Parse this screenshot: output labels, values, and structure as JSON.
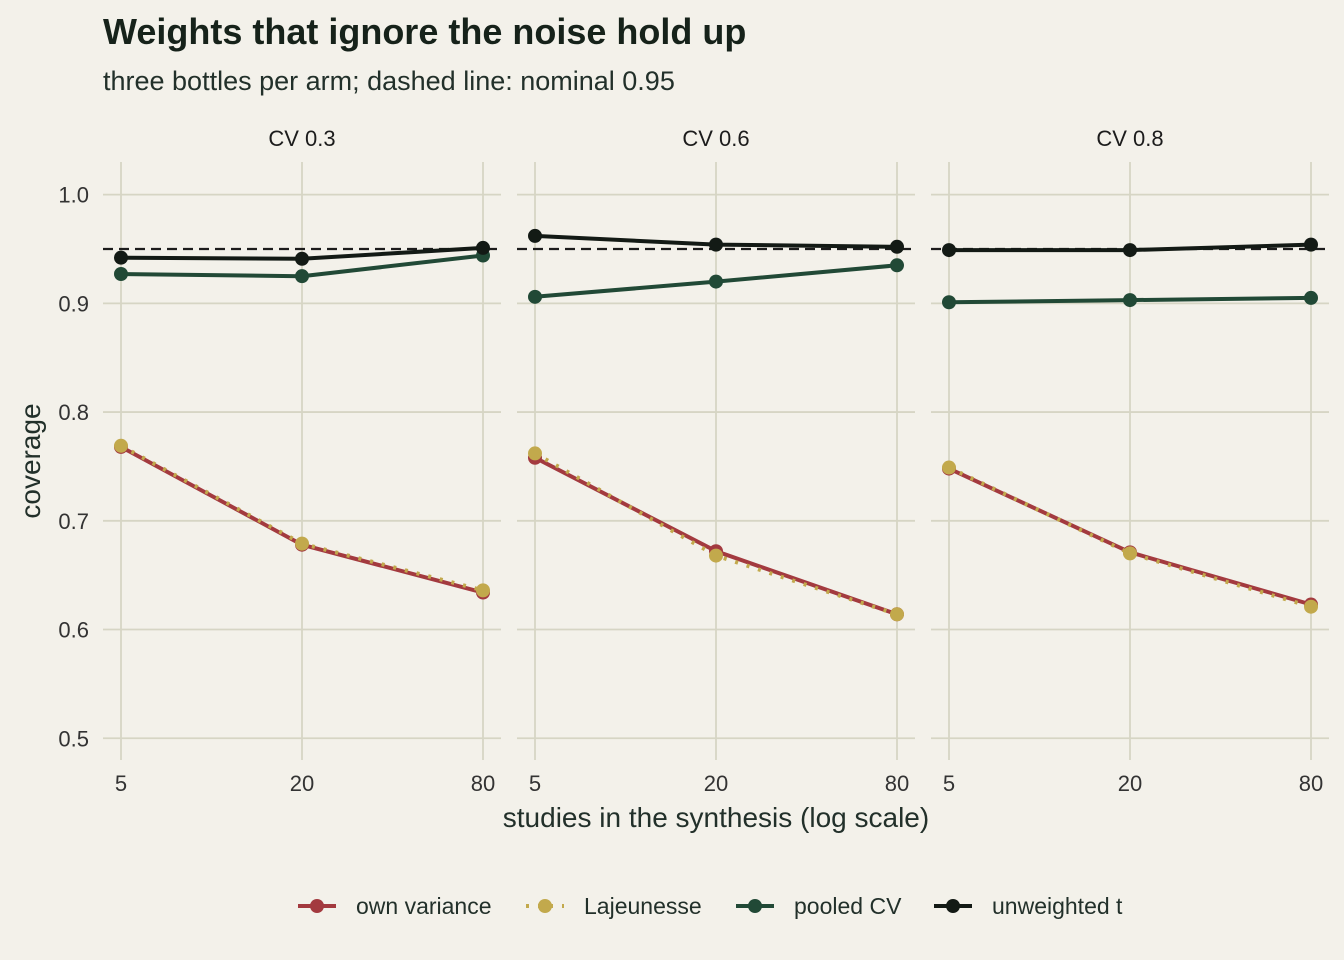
{
  "title": "Weights that ignore the noise hold up",
  "subtitle": "three bottles per arm; dashed line: nominal 0.95",
  "chart_data": {
    "type": "line",
    "title": "Weights that ignore the noise hold up",
    "subtitle": "three bottles per arm; dashed line: nominal 0.95",
    "xlabel": "studies in the synthesis (log scale)",
    "ylabel": "coverage",
    "x_scale": "log",
    "x": [
      5,
      20,
      80
    ],
    "x_tick_labels": [
      "5",
      "20",
      "80"
    ],
    "ylim": [
      0.48,
      1.03
    ],
    "y_ticks": [
      0.5,
      0.6,
      0.7,
      0.8,
      0.9,
      1.0
    ],
    "y_tick_labels": [
      "0.5",
      "0.6",
      "0.7",
      "0.8",
      "0.9",
      "1.0"
    ],
    "reference_line": {
      "y": 0.95,
      "style": "dashed",
      "color": "#1c1c1c"
    },
    "grid": true,
    "legend_position": "bottom",
    "series_styles": [
      {
        "name": "own variance",
        "color": "#a33a3f",
        "dash": "solid"
      },
      {
        "name": "Lajeunesse",
        "color": "#c2a94c",
        "dash": "dotted"
      },
      {
        "name": "pooled CV",
        "color": "#214936",
        "dash": "solid"
      },
      {
        "name": "unweighted t",
        "color": "#131a15",
        "dash": "solid"
      }
    ],
    "panels": [
      {
        "label": "CV 0.3",
        "series": [
          {
            "name": "own variance",
            "values": [
              0.768,
              0.678,
              0.634
            ]
          },
          {
            "name": "Lajeunesse",
            "values": [
              0.769,
              0.679,
              0.636
            ]
          },
          {
            "name": "pooled CV",
            "values": [
              0.927,
              0.925,
              0.944
            ]
          },
          {
            "name": "unweighted t",
            "values": [
              0.942,
              0.941,
              0.951
            ]
          }
        ]
      },
      {
        "label": "CV 0.6",
        "series": [
          {
            "name": "own variance",
            "values": [
              0.758,
              0.672,
              0.614
            ]
          },
          {
            "name": "Lajeunesse",
            "values": [
              0.762,
              0.668,
              0.614
            ]
          },
          {
            "name": "pooled CV",
            "values": [
              0.906,
              0.92,
              0.935
            ]
          },
          {
            "name": "unweighted t",
            "values": [
              0.962,
              0.954,
              0.952
            ]
          }
        ]
      },
      {
        "label": "CV 0.8",
        "series": [
          {
            "name": "own variance",
            "values": [
              0.748,
              0.671,
              0.623
            ]
          },
          {
            "name": "Lajeunesse",
            "values": [
              0.749,
              0.67,
              0.621
            ]
          },
          {
            "name": "pooled CV",
            "values": [
              0.901,
              0.903,
              0.905
            ]
          },
          {
            "name": "unweighted t",
            "values": [
              0.949,
              0.949,
              0.954
            ]
          }
        ]
      }
    ]
  }
}
